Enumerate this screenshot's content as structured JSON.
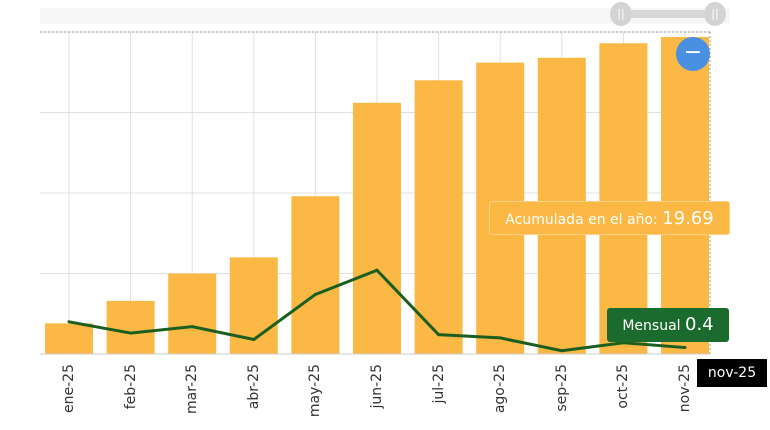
{
  "chart_data": {
    "type": "bar",
    "categories": [
      "ene-25",
      "feb-25",
      "mar-25",
      "abr-25",
      "may-25",
      "jun-25",
      "jul-25",
      "ago-25",
      "sep-25",
      "oct-25",
      "nov-25"
    ],
    "series": [
      {
        "name": "Acumulada en el año",
        "type": "bar",
        "color": "#fbb844",
        "values": [
          1.9,
          3.3,
          5.0,
          6.0,
          9.8,
          15.6,
          17.0,
          18.1,
          18.4,
          19.3,
          19.69
        ]
      },
      {
        "name": "Mensual",
        "type": "line",
        "color": "#1c5e20",
        "values": [
          2.0,
          1.3,
          1.7,
          0.9,
          3.7,
          5.2,
          1.2,
          1.0,
          0.2,
          0.7,
          0.4
        ]
      }
    ],
    "ylim": [
      0,
      20
    ],
    "grid": true,
    "xlabel": "",
    "ylabel": ""
  },
  "tooltip": {
    "acc_label": "Acumulada en el año:",
    "acc_value": "19.69",
    "monthly_label": "Mensual",
    "monthly_value": "0.4",
    "x_label": "nov-25"
  },
  "controls": {
    "reset_icon": "minus-icon",
    "reset_symbol": "−",
    "handle_symbol": "||"
  }
}
